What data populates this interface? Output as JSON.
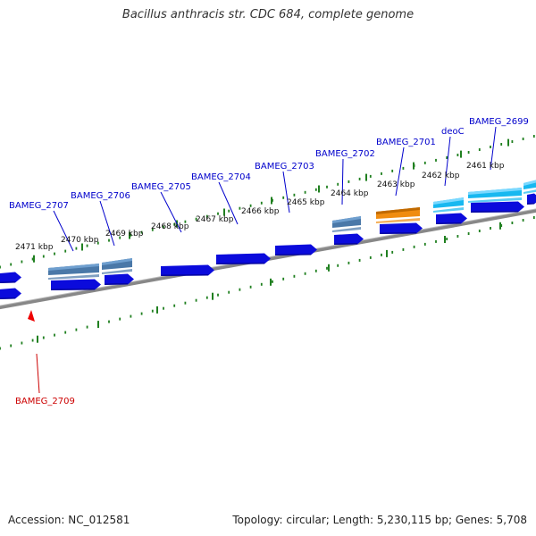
{
  "header": {
    "title": "Bacillus anthracis str. CDC 684, complete genome"
  },
  "footer": {
    "accession": "Accession: NC_012581",
    "summary": "Topology: circular; Length: 5,230,115 bp; Genes: 5,708"
  },
  "scale": {
    "tick_labels": [
      "2471 kbp",
      "2470 kbp",
      "2469 kbp",
      "2468 kbp",
      "2467 kbp",
      "2466 kbp",
      "2465 kbp",
      "2464 kbp",
      "2463 kbp",
      "2462 kbp",
      "2461 kbp"
    ]
  },
  "gene_labels": [
    {
      "text": "BAMEG_2707",
      "color": "#0000cc"
    },
    {
      "text": "BAMEG_2706",
      "color": "#0000cc"
    },
    {
      "text": "BAMEG_2705",
      "color": "#0000cc"
    },
    {
      "text": "BAMEG_2704",
      "color": "#0000cc"
    },
    {
      "text": "BAMEG_2703",
      "color": "#0000cc"
    },
    {
      "text": "BAMEG_2702",
      "color": "#0000cc"
    },
    {
      "text": "BAMEG_2701",
      "color": "#0000cc"
    },
    {
      "text": "deoC",
      "color": "#0000cc"
    },
    {
      "text": "BAMEG_2699",
      "color": "#0000cc"
    },
    {
      "text": "BAMEG_2709",
      "color": "#cc0000"
    }
  ],
  "colors": {
    "cds": "#0b0bdc",
    "steel_blue": "#4a78a8",
    "orange": "#f08c10",
    "cyan": "#18b8f0",
    "tick_green": "#208020",
    "backbone": "#888888",
    "highlight_red": "#ee0000"
  }
}
